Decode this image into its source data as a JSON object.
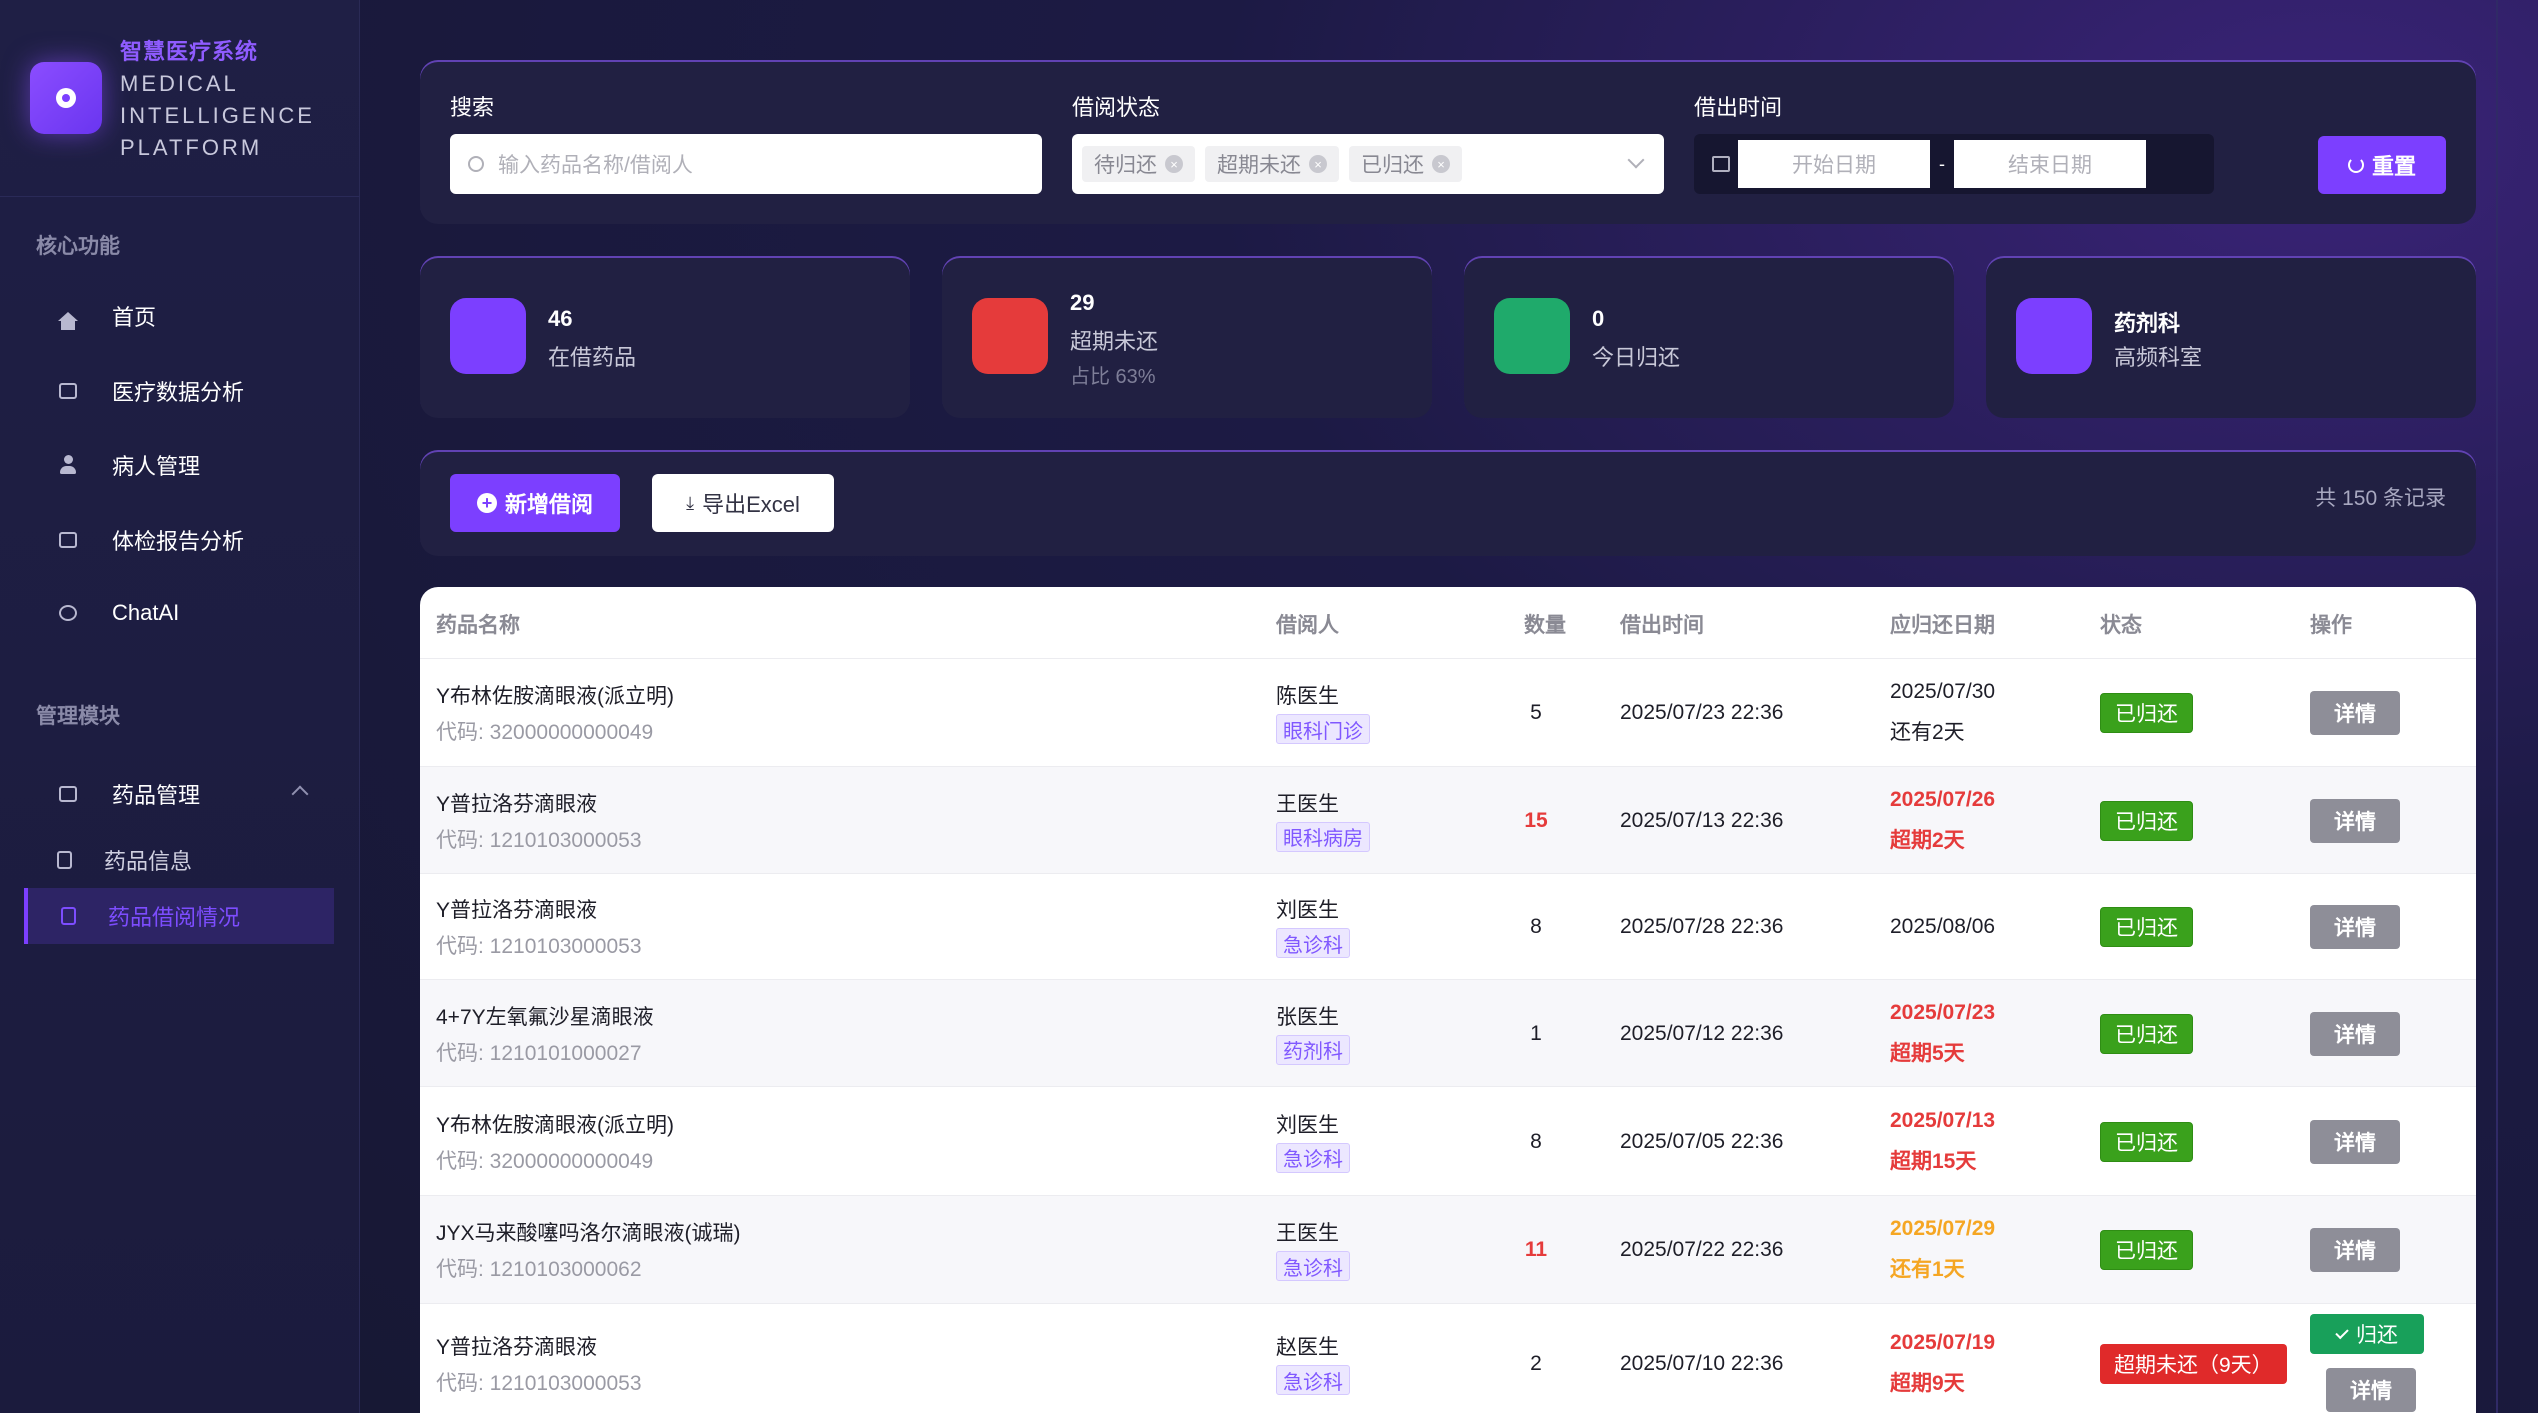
{
  "brand": {
    "title": "智慧医疗系统",
    "subtitle": "MEDICAL INTELLIGENCE PLATFORM"
  },
  "sidebar": {
    "section_core": "核心功能",
    "core_items": [
      {
        "label": "首页",
        "icon": "home-icon"
      },
      {
        "label": "医疗数据分析",
        "icon": "chart-icon"
      },
      {
        "label": "病人管理",
        "icon": "user-icon"
      },
      {
        "label": "体检报告分析",
        "icon": "report-icon"
      },
      {
        "label": "ChatAI",
        "icon": "chat-icon"
      }
    ],
    "section_manage": "管理模块",
    "manage_group": {
      "label": "药品管理",
      "icon": "medicine-icon",
      "expanded": true
    },
    "manage_sub_items": [
      {
        "label": "药品信息",
        "icon": "document-icon",
        "active": false
      },
      {
        "label": "药品借阅情况",
        "icon": "document-icon",
        "active": true
      }
    ]
  },
  "filters": {
    "search_label": "搜索",
    "search_placeholder": "输入药品名称/借阅人",
    "status_label": "借阅状态",
    "status_tags": [
      "待归还",
      "超期未还",
      "已归还"
    ],
    "time_label": "借出时间",
    "start_placeholder": "开始日期",
    "end_placeholder": "结束日期",
    "date_separator": "-",
    "reset_label": "重置"
  },
  "stats": [
    {
      "value": "46",
      "label": "在借药品",
      "note": "",
      "color": "#7c3fff"
    },
    {
      "value": "29",
      "label": "超期未还",
      "note": "占比 63%",
      "color": "#e53b3b"
    },
    {
      "value": "0",
      "label": "今日归还",
      "note": "",
      "color": "#1faa6b"
    },
    {
      "value": "药剂科",
      "label": "高频科室",
      "note": "",
      "color": "#7c3fff"
    }
  ],
  "toolbar": {
    "add_label": "新增借阅",
    "export_label": "导出Excel",
    "record_count": "共 150 条记录"
  },
  "table": {
    "headers": {
      "name": "药品名称",
      "borrower": "借阅人",
      "qty": "数量",
      "lend_time": "借出时间",
      "due_date": "应归还日期",
      "status": "状态",
      "action": "操作"
    },
    "detail_label": "详情",
    "return_label": "归还",
    "rows": [
      {
        "name": "Y布林佐胺滴眼液(派立明)",
        "code": "代码: 32000000000049",
        "borrower": "陈医生",
        "dept": "眼科门诊",
        "qty": "5",
        "qty_alert": false,
        "lend_time": "2025/07/23 22:36",
        "due_date": "2025/07/30",
        "due_note": "还有2天",
        "due_level": "normal",
        "status": "已归还",
        "status_type": "returned",
        "can_return": false
      },
      {
        "name": "Y普拉洛芬滴眼液",
        "code": "代码: 1210103000053",
        "borrower": "王医生",
        "dept": "眼科病房",
        "qty": "15",
        "qty_alert": true,
        "lend_time": "2025/07/13 22:36",
        "due_date": "2025/07/26",
        "due_note": "超期2天",
        "due_level": "overdue",
        "status": "已归还",
        "status_type": "returned",
        "can_return": false
      },
      {
        "name": "Y普拉洛芬滴眼液",
        "code": "代码: 1210103000053",
        "borrower": "刘医生",
        "dept": "急诊科",
        "qty": "8",
        "qty_alert": false,
        "lend_time": "2025/07/28 22:36",
        "due_date": "2025/08/06",
        "due_note": "",
        "due_level": "normal",
        "status": "已归还",
        "status_type": "returned",
        "can_return": false
      },
      {
        "name": "4+7Y左氧氟沙星滴眼液",
        "code": "代码: 1210101000027",
        "borrower": "张医生",
        "dept": "药剂科",
        "qty": "1",
        "qty_alert": false,
        "lend_time": "2025/07/12 22:36",
        "due_date": "2025/07/23",
        "due_note": "超期5天",
        "due_level": "overdue",
        "status": "已归还",
        "status_type": "returned",
        "can_return": false
      },
      {
        "name": "Y布林佐胺滴眼液(派立明)",
        "code": "代码: 32000000000049",
        "borrower": "刘医生",
        "dept": "急诊科",
        "qty": "8",
        "qty_alert": false,
        "lend_time": "2025/07/05 22:36",
        "due_date": "2025/07/13",
        "due_note": "超期15天",
        "due_level": "overdue",
        "status": "已归还",
        "status_type": "returned",
        "can_return": false
      },
      {
        "name": "JYX马来酸噻吗洛尔滴眼液(诚瑞)",
        "code": "代码: 1210103000062",
        "borrower": "王医生",
        "dept": "急诊科",
        "qty": "11",
        "qty_alert": true,
        "lend_time": "2025/07/22 22:36",
        "due_date": "2025/07/29",
        "due_note": "还有1天",
        "due_level": "warning",
        "status": "已归还",
        "status_type": "returned",
        "can_return": false
      },
      {
        "name": "Y普拉洛芬滴眼液",
        "code": "代码: 1210103000053",
        "borrower": "赵医生",
        "dept": "急诊科",
        "qty": "2",
        "qty_alert": false,
        "lend_time": "2025/07/10 22:36",
        "due_date": "2025/07/19",
        "due_note": "超期9天",
        "due_level": "overdue",
        "status": "超期未还（9天）",
        "status_type": "overdue",
        "can_return": true
      }
    ]
  }
}
